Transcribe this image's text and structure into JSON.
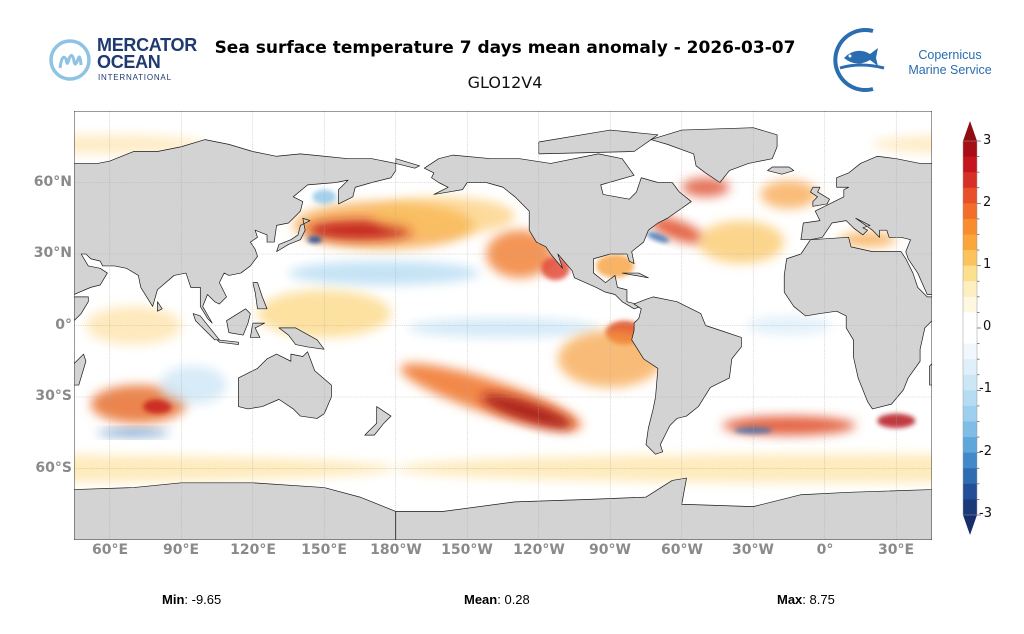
{
  "header": {
    "title": "Sea surface temperature 7 days mean anomaly - 2026-03-07",
    "subtitle": "GLO12V4",
    "logo_left": {
      "line1": "MERCATOR",
      "line2": "OCEAN",
      "line3": "INTERNATIONAL"
    },
    "logo_right": {
      "line1": "Copernicus",
      "line2": "Marine Service"
    }
  },
  "map": {
    "projection": "equirectangular",
    "lat_labels": [
      "60°N",
      "30°N",
      "0°",
      "30°S",
      "60°S"
    ],
    "lon_labels": [
      "60°E",
      "90°E",
      "120°E",
      "150°E",
      "180°W",
      "150°W",
      "120°W",
      "90°W",
      "60°W",
      "30°W",
      "0°",
      "30°E"
    ],
    "land_color": "#d3d3d3",
    "grid": true
  },
  "colorbar": {
    "ticks": [
      "3",
      "2",
      "1",
      "0",
      "-1",
      "-2",
      "-3"
    ],
    "range": [
      -3,
      3
    ],
    "step": 0.25,
    "extend": "both",
    "colors": [
      "#a50f15",
      "#c4161c",
      "#d73027",
      "#e8502a",
      "#f46d2b",
      "#f88c2e",
      "#fba63a",
      "#fcc35c",
      "#fde08d",
      "#feefc0",
      "#fff8e0",
      "#ffffff",
      "#ffffff",
      "#f0f8fd",
      "#e0f0fa",
      "#cce6f6",
      "#b5dcf2",
      "#9dd0ef",
      "#7fbde6",
      "#5fa6da",
      "#4189c8",
      "#2f6cb1",
      "#234f98",
      "#1a3a7a"
    ]
  },
  "stats": {
    "min_label": "Min",
    "min_value": ": -9.65",
    "mean_label": "Mean",
    "mean_value": ": 0.28",
    "max_label": "Max",
    "max_value": ": 8.75"
  }
}
